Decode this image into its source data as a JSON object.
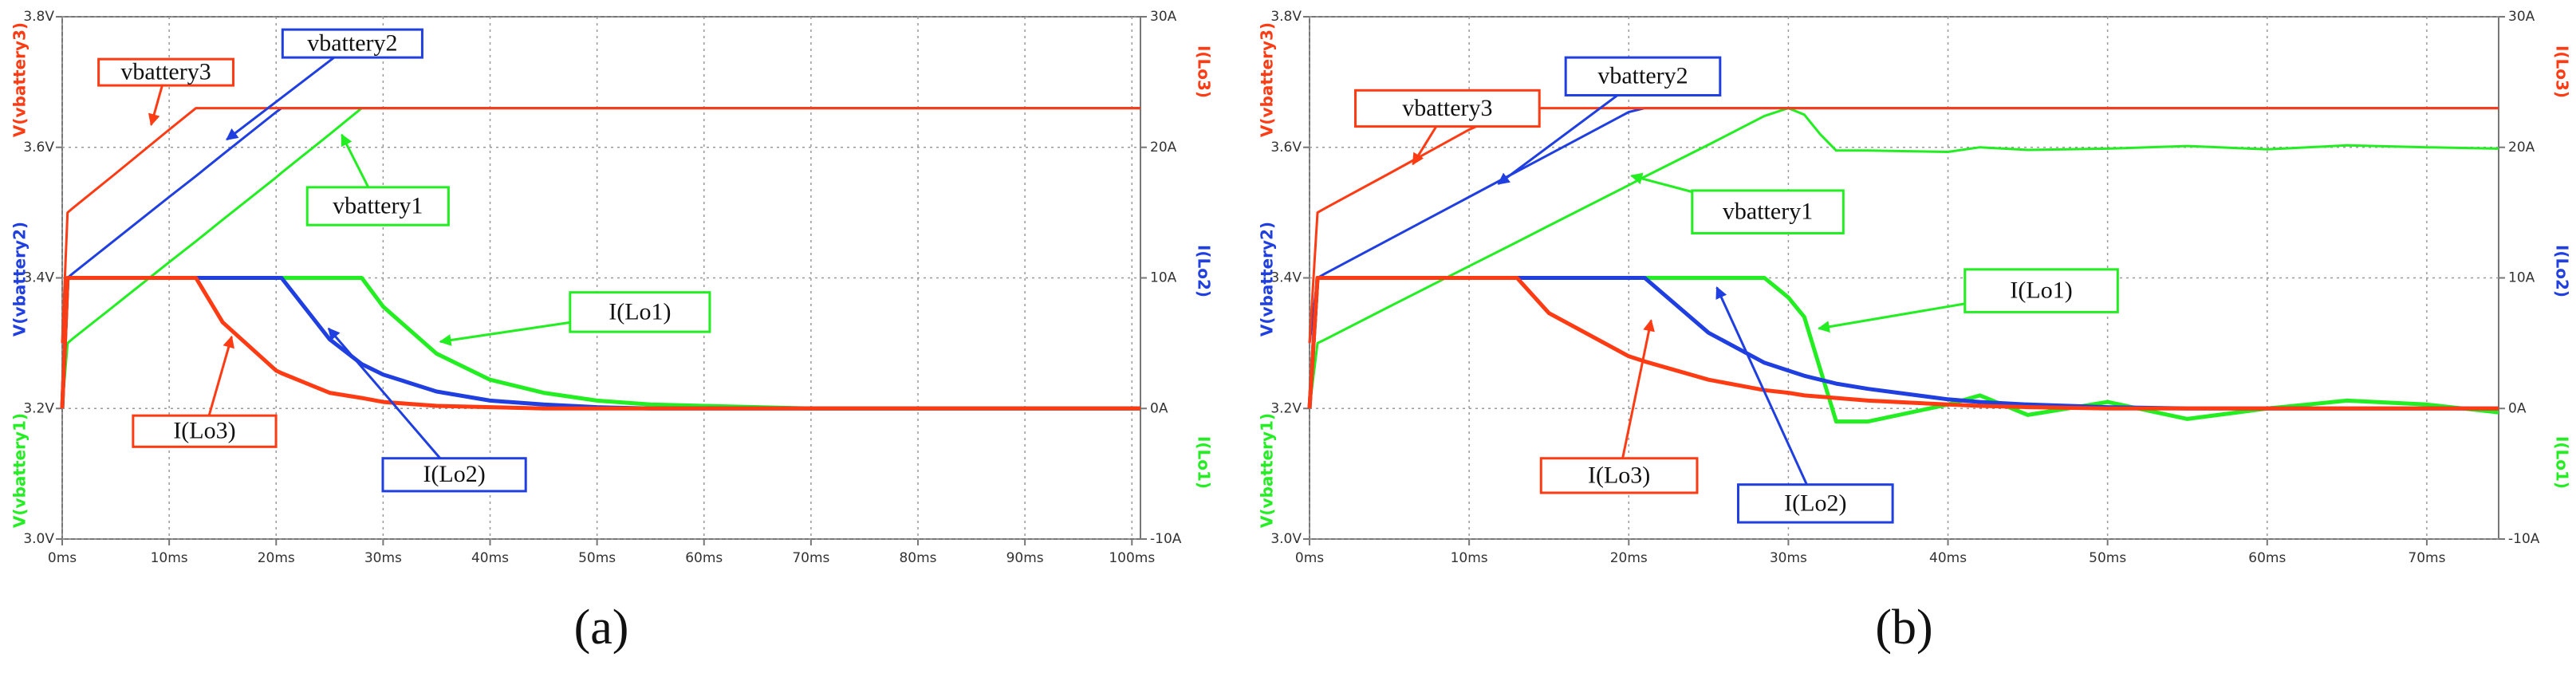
{
  "chart_data": [
    {
      "type": "line",
      "label": "(a)",
      "x": [
        0,
        0.5,
        1,
        5,
        10,
        12.5,
        15,
        20,
        20.5,
        25,
        28,
        30,
        35,
        40,
        45,
        50,
        55,
        60,
        65,
        70,
        80,
        90,
        100.8
      ],
      "xlim": [
        0,
        100.8
      ],
      "xticks": [
        {
          "value": 0,
          "label": "0ms"
        },
        {
          "value": 10,
          "label": "10ms"
        },
        {
          "value": 20,
          "label": "20ms"
        },
        {
          "value": 30,
          "label": "30ms"
        },
        {
          "value": 40,
          "label": "40ms"
        },
        {
          "value": 50,
          "label": "50ms"
        },
        {
          "value": 60,
          "label": "60ms"
        },
        {
          "value": 70,
          "label": "70ms"
        },
        {
          "value": 80,
          "label": "80ms"
        },
        {
          "value": 90,
          "label": "90ms"
        },
        {
          "value": 100,
          "label": "100ms"
        }
      ],
      "ylim": [
        3.0,
        3.8
      ],
      "yticks": [
        {
          "value": 3.0,
          "label": "3.0V"
        },
        {
          "value": 3.2,
          "label": "3.2V"
        },
        {
          "value": 3.4,
          "label": "3.4V"
        },
        {
          "value": 3.6,
          "label": "3.6V"
        },
        {
          "value": 3.8,
          "label": "3.8V"
        }
      ],
      "y2lim": [
        -10,
        30
      ],
      "y2ticks": [
        {
          "value": -10,
          "label": "-10A"
        },
        {
          "value": 0,
          "label": "0A"
        },
        {
          "value": 10,
          "label": "10A"
        },
        {
          "value": 20,
          "label": "20A"
        },
        {
          "value": 30,
          "label": "30A"
        }
      ],
      "y_label": [
        "V(vbattery3)",
        "V(vbattery2)",
        "V(vbattery1)"
      ],
      "y2_label": [
        "I(Lo3)",
        "I(Lo2)",
        "I(Lo1)"
      ],
      "grid": true,
      "series": [
        {
          "name": "vbattery1",
          "color": "#22ee22",
          "values": [
            3.2,
            3.3,
            3.307,
            3.359,
            3.424,
            3.456,
            3.489,
            3.554,
            3.561,
            3.62,
            3.66,
            3.66,
            3.66,
            3.66,
            3.66,
            3.66,
            3.66,
            3.66,
            3.66,
            3.66,
            3.66,
            3.66,
            3.66
          ]
        },
        {
          "name": "vbattery2",
          "color": "#1f3fe0",
          "values": [
            3.3,
            3.4,
            3.407,
            3.459,
            3.524,
            3.556,
            3.589,
            3.654,
            3.66,
            3.66,
            3.66,
            3.66,
            3.66,
            3.66,
            3.66,
            3.66,
            3.66,
            3.66,
            3.66,
            3.66,
            3.66,
            3.66,
            3.66
          ]
        },
        {
          "name": "vbattery3",
          "color": "#ff3b14",
          "values": [
            3.3,
            3.5,
            3.507,
            3.56,
            3.627,
            3.66,
            3.66,
            3.66,
            3.66,
            3.66,
            3.66,
            3.66,
            3.66,
            3.66,
            3.66,
            3.66,
            3.66,
            3.66,
            3.66,
            3.66,
            3.66,
            3.66,
            3.66
          ]
        },
        {
          "name": "I(Lo1)",
          "color": "#22ee22",
          "axis": "y2",
          "values": [
            0,
            10,
            10,
            10,
            10,
            10,
            10,
            10,
            10,
            10,
            10,
            7.8,
            4.2,
            2.2,
            1.2,
            0.6,
            0.3,
            0.2,
            0.1,
            0,
            0,
            0,
            0
          ]
        },
        {
          "name": "I(Lo2)",
          "color": "#1f3fe0",
          "axis": "y2",
          "values": [
            0,
            10,
            10,
            10,
            10,
            10,
            10,
            10,
            10,
            5.3,
            3.4,
            2.6,
            1.3,
            0.6,
            0.3,
            0.1,
            0,
            0,
            0,
            0,
            0,
            0,
            0
          ]
        },
        {
          "name": "I(Lo3)",
          "color": "#ff3b14",
          "axis": "y2",
          "values": [
            0,
            10,
            10,
            10,
            10,
            10,
            6.6,
            2.9,
            2.7,
            1.2,
            0.8,
            0.5,
            0.2,
            0.1,
            0,
            0,
            0,
            0,
            0,
            0,
            0,
            0,
            0
          ]
        }
      ]
    },
    {
      "type": "line",
      "label": "(b)",
      "x": [
        0,
        0.5,
        1,
        5,
        10,
        13,
        15,
        20,
        21,
        25,
        28.5,
        30,
        31,
        32,
        33,
        35,
        40,
        42,
        45,
        50,
        55,
        60,
        65,
        70,
        74.5
      ],
      "xlim": [
        0,
        74.5
      ],
      "xticks": [
        {
          "value": 0,
          "label": "0ms"
        },
        {
          "value": 10,
          "label": "10ms"
        },
        {
          "value": 20,
          "label": "20ms"
        },
        {
          "value": 30,
          "label": "30ms"
        },
        {
          "value": 40,
          "label": "40ms"
        },
        {
          "value": 50,
          "label": "50ms"
        },
        {
          "value": 60,
          "label": "60ms"
        },
        {
          "value": 70,
          "label": "70ms"
        }
      ],
      "ylim": [
        3.0,
        3.8
      ],
      "yticks": [
        {
          "value": 3.0,
          "label": "3.0V"
        },
        {
          "value": 3.2,
          "label": "3.2V"
        },
        {
          "value": 3.4,
          "label": "3.4V"
        },
        {
          "value": 3.6,
          "label": "3.6V"
        },
        {
          "value": 3.8,
          "label": "3.8V"
        }
      ],
      "y2lim": [
        -10,
        30
      ],
      "y2ticks": [
        {
          "value": -10,
          "label": "-10A"
        },
        {
          "value": 0,
          "label": "0A"
        },
        {
          "value": 10,
          "label": "10A"
        },
        {
          "value": 20,
          "label": "20A"
        },
        {
          "value": 30,
          "label": "30A"
        }
      ],
      "y_label": [
        "V(vbattery3)",
        "V(vbattery2)",
        "V(vbattery1)"
      ],
      "y2_label": [
        "I(Lo3)",
        "I(Lo2)",
        "I(Lo1)"
      ],
      "grid": true,
      "series": [
        {
          "name": "vbattery1",
          "color": "#22ee22",
          "values": [
            3.2,
            3.3,
            3.306,
            3.356,
            3.418,
            3.455,
            3.48,
            3.542,
            3.555,
            3.604,
            3.648,
            3.66,
            3.65,
            3.62,
            3.595,
            3.595,
            3.593,
            3.6,
            3.596,
            3.598,
            3.602,
            3.597,
            3.603,
            3.6,
            3.598
          ]
        },
        {
          "name": "vbattery2",
          "color": "#1f3fe0",
          "values": [
            3.3,
            3.4,
            3.407,
            3.459,
            3.524,
            3.563,
            3.589,
            3.654,
            3.66,
            3.66,
            3.66,
            3.66,
            3.66,
            3.66,
            3.66,
            3.66,
            3.66,
            3.66,
            3.66,
            3.66,
            3.66,
            3.66,
            3.66,
            3.66,
            3.66
          ]
        },
        {
          "name": "vbattery3",
          "color": "#ff3b14",
          "values": [
            3.3,
            3.5,
            3.507,
            3.56,
            3.627,
            3.66,
            3.66,
            3.66,
            3.66,
            3.66,
            3.66,
            3.66,
            3.66,
            3.66,
            3.66,
            3.66,
            3.66,
            3.66,
            3.66,
            3.66,
            3.66,
            3.66,
            3.66,
            3.66,
            3.66
          ]
        },
        {
          "name": "I(Lo1)",
          "color": "#22ee22",
          "axis": "y2",
          "values": [
            0,
            10,
            10,
            10,
            10,
            10,
            10,
            10,
            10,
            10,
            10,
            8.5,
            7,
            3,
            -1,
            -1,
            0.3,
            1,
            -0.5,
            0.5,
            -0.8,
            0,
            0.6,
            0.3,
            -0.3
          ]
        },
        {
          "name": "I(Lo2)",
          "color": "#1f3fe0",
          "axis": "y2",
          "values": [
            0,
            10,
            10,
            10,
            10,
            10,
            10,
            10,
            10,
            5.8,
            3.5,
            2.9,
            2.5,
            2.2,
            1.9,
            1.5,
            0.7,
            0.5,
            0.3,
            0.1,
            0,
            0,
            0,
            0,
            0
          ]
        },
        {
          "name": "I(Lo3)",
          "color": "#ff3b14",
          "axis": "y2",
          "values": [
            0,
            10,
            10,
            10,
            10,
            10,
            7.3,
            4,
            3.6,
            2.2,
            1.4,
            1.2,
            1,
            0.9,
            0.8,
            0.6,
            0.3,
            0.2,
            0.1,
            0,
            0,
            0,
            0,
            0,
            0
          ]
        }
      ]
    }
  ]
}
